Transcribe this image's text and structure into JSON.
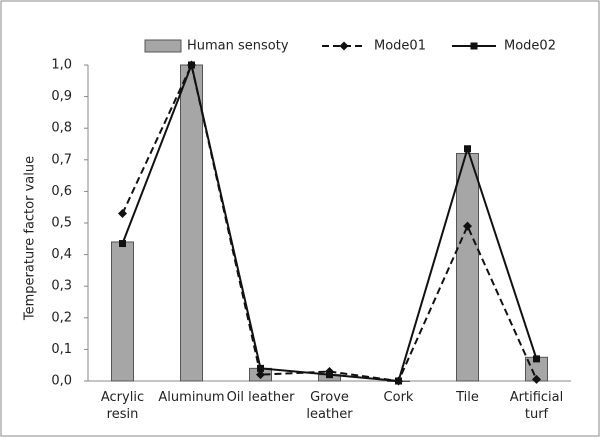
{
  "chart_data": {
    "type": "bar-line",
    "categories": [
      "Acrylic\nresin",
      "Aluminum",
      "Oil leather",
      "Grove\nleather",
      "Cork",
      "Tile",
      "Artificial\nturf"
    ],
    "y_label": "Temperature factor value",
    "series": [
      {
        "name": "Human sensoty",
        "type": "bar",
        "color": "#a6a6a6",
        "values": [
          0.44,
          1.0,
          0.04,
          0.02,
          0.0,
          0.72,
          0.075
        ]
      },
      {
        "name": "Mode01",
        "type": "line",
        "dash": true,
        "marker": "diamond",
        "color": "#111111",
        "values": [
          0.53,
          1.0,
          0.02,
          0.03,
          0.0,
          0.49,
          0.005
        ]
      },
      {
        "name": "Mode02",
        "type": "line",
        "dash": false,
        "marker": "square",
        "color": "#111111",
        "values": [
          0.435,
          1.0,
          0.04,
          0.02,
          0.0,
          0.735,
          0.07
        ]
      }
    ],
    "ylim": [
      0,
      1
    ],
    "yticks": [
      {
        "value": 0,
        "label": "0,0"
      },
      {
        "value": 0.1,
        "label": "0,1"
      },
      {
        "value": 0.2,
        "label": "0,2"
      },
      {
        "value": 0.3,
        "label": "0,3"
      },
      {
        "value": 0.4,
        "label": "0,4"
      },
      {
        "value": 0.5,
        "label": "0,5"
      },
      {
        "value": 0.6,
        "label": "0,6"
      },
      {
        "value": 0.7,
        "label": "0,7"
      },
      {
        "value": 0.8,
        "label": "0,8"
      },
      {
        "value": 0.9,
        "label": "0,9"
      },
      {
        "value": 1,
        "label": "1,0"
      }
    ],
    "legend": "top",
    "grid": false
  }
}
